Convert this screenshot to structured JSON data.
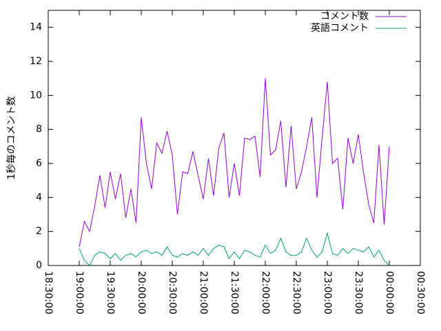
{
  "chart_data": {
    "type": "line",
    "ylabel": "1秒毎のコメント数",
    "x": [
      "19:00:00",
      "19:05:00",
      "19:10:00",
      "19:15:00",
      "19:20:00",
      "19:25:00",
      "19:30:00",
      "19:35:00",
      "19:40:00",
      "19:45:00",
      "19:50:00",
      "19:55:00",
      "20:00:00",
      "20:05:00",
      "20:10:00",
      "20:15:00",
      "20:20:00",
      "20:25:00",
      "20:30:00",
      "20:35:00",
      "20:40:00",
      "20:45:00",
      "20:50:00",
      "20:55:00",
      "21:00:00",
      "21:05:00",
      "21:10:00",
      "21:15:00",
      "21:20:00",
      "21:25:00",
      "21:30:00",
      "21:35:00",
      "21:40:00",
      "21:45:00",
      "21:50:00",
      "21:55:00",
      "22:00:00",
      "22:05:00",
      "22:10:00",
      "22:15:00",
      "22:20:00",
      "22:25:00",
      "22:30:00",
      "22:35:00",
      "22:40:00",
      "22:45:00",
      "22:50:00",
      "22:55:00",
      "23:00:00",
      "23:05:00",
      "23:10:00",
      "23:15:00",
      "23:20:00",
      "23:25:00",
      "23:30:00",
      "23:35:00",
      "23:40:00",
      "23:45:00",
      "23:50:00",
      "23:55:00",
      "00:00:00"
    ],
    "series": [
      {
        "name": "コメント数",
        "color": "#9400d3",
        "values": [
          1.1,
          2.6,
          2.0,
          3.5,
          5.3,
          3.4,
          5.5,
          3.9,
          5.4,
          2.8,
          4.5,
          2.5,
          8.7,
          6.0,
          4.5,
          7.2,
          6.6,
          7.9,
          6.5,
          3.0,
          5.5,
          5.4,
          6.7,
          5.3,
          3.9,
          6.3,
          4.1,
          6.9,
          7.8,
          4.0,
          6.0,
          4.1,
          7.5,
          7.4,
          7.6,
          5.2,
          11.0,
          6.5,
          6.8,
          8.5,
          4.6,
          8.2,
          4.5,
          5.5,
          7.0,
          8.7,
          4.0,
          7.5,
          10.8,
          6.0,
          6.3,
          3.3,
          7.5,
          6.0,
          7.7,
          5.5,
          3.6,
          2.5,
          7.1,
          2.4,
          7.0
        ]
      },
      {
        "name": "英語コメント",
        "color": "#009e73",
        "values": [
          1.0,
          0.3,
          0.0,
          0.6,
          0.8,
          0.7,
          0.4,
          0.7,
          0.3,
          0.6,
          0.7,
          0.5,
          0.8,
          0.9,
          0.7,
          0.8,
          0.6,
          1.1,
          0.6,
          0.5,
          0.7,
          0.6,
          0.8,
          0.6,
          1.0,
          0.6,
          1.0,
          1.2,
          1.1,
          0.4,
          0.8,
          0.4,
          0.9,
          0.8,
          0.6,
          0.5,
          1.2,
          0.7,
          0.9,
          1.6,
          0.8,
          0.6,
          0.6,
          0.8,
          1.6,
          0.9,
          0.5,
          0.8,
          1.9,
          0.7,
          0.6,
          1.0,
          0.7,
          1.0,
          0.9,
          0.8,
          1.1,
          0.5,
          0.9,
          0.3,
          0.0
        ]
      }
    ],
    "xlim": [
      "18:30:00",
      "00:30:00"
    ],
    "xticks": [
      "18:30:00",
      "19:00:00",
      "19:30:00",
      "20:00:00",
      "20:30:00",
      "21:00:00",
      "21:30:00",
      "22:00:00",
      "22:30:00",
      "23:00:00",
      "23:30:00",
      "00:00:00",
      "00:30:00"
    ],
    "ylim": [
      0,
      15
    ],
    "yticks": [
      0,
      2,
      4,
      6,
      8,
      10,
      12,
      14
    ],
    "grid": false,
    "legend": "top-right"
  }
}
